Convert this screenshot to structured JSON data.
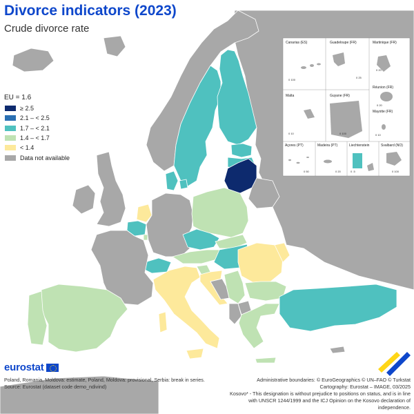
{
  "header": {
    "title": "Divorce indicators (2023)",
    "subtitle": "Crude divorce rate"
  },
  "legend": {
    "title": "EU = 1.6",
    "items": [
      {
        "label": "≥ 2.5",
        "color": "#0d2a6e"
      },
      {
        "label": "2.1 – < 2.5",
        "color": "#2a6fb2"
      },
      {
        "label": "1.7 – < 2.1",
        "color": "#4fc1bf"
      },
      {
        "label": "1.4 – < 1.7",
        "color": "#bfe2b3"
      },
      {
        "label": "< 1.4",
        "color": "#fde99b"
      },
      {
        "label": "Data not available",
        "color": "#a8a8a8"
      }
    ]
  },
  "colors": {
    "sea": "#ffffff",
    "non_eu_land": "#a8a8a8",
    "border": "#ffffff",
    "title": "#0e47cb"
  },
  "insets": [
    {
      "label": "Canarias (ES)",
      "scale": "0   100"
    },
    {
      "label": "Guadeloupe (FR)",
      "scale": "0   25"
    },
    {
      "label": "Martinique (FR)",
      "scale": "0   20"
    },
    {
      "label": "Réunion (FR)",
      "scale": "0   20"
    },
    {
      "label": "Malta",
      "scale": "0   10"
    },
    {
      "label": "Guyane (FR)",
      "scale": "0   100"
    },
    {
      "label": "Mayotte (FR)",
      "scale": "0   10"
    },
    {
      "label": "Açores (PT)",
      "scale": "0   50"
    },
    {
      "label": "Madeira (PT)",
      "scale": "0   20"
    },
    {
      "label": "Liechtenstein",
      "scale": "0   .5"
    },
    {
      "label": "Svalbard (NO)",
      "scale": "0 100"
    }
  ],
  "countries": [
    {
      "name": "Lithuania",
      "class": "≥ 2.5",
      "color": "#0d2a6e"
    },
    {
      "name": "Latvia",
      "class": "1.7 – < 2.1",
      "color": "#4fc1bf"
    },
    {
      "name": "Estonia",
      "class": "1.7 – < 2.1",
      "color": "#4fc1bf"
    },
    {
      "name": "Finland",
      "class": "1.7 – < 2.1",
      "color": "#4fc1bf"
    },
    {
      "name": "Sweden",
      "class": "1.7 – < 2.1",
      "color": "#4fc1bf"
    },
    {
      "name": "Denmark",
      "class": "1.7 – < 2.1",
      "color": "#4fc1bf"
    },
    {
      "name": "Belgium",
      "class": "1.7 – < 2.1",
      "color": "#4fc1bf"
    },
    {
      "name": "Czechia",
      "class": "1.7 – < 2.1",
      "color": "#4fc1bf"
    },
    {
      "name": "Hungary",
      "class": "1.7 – < 2.1",
      "color": "#4fc1bf"
    },
    {
      "name": "Switzerland",
      "class": "1.7 – < 2.1",
      "color": "#4fc1bf"
    },
    {
      "name": "Türkiye",
      "class": "1.7 – < 2.1",
      "color": "#4fc1bf"
    },
    {
      "name": "Poland",
      "class": "1.4 – < 1.7",
      "color": "#bfe2b3"
    },
    {
      "name": "Spain",
      "class": "1.4 – < 1.7",
      "color": "#bfe2b3"
    },
    {
      "name": "Portugal",
      "class": "1.4 – < 1.7",
      "color": "#bfe2b3"
    },
    {
      "name": "Slovakia",
      "class": "1.4 – < 1.7",
      "color": "#bfe2b3"
    },
    {
      "name": "Austria",
      "class": "1.4 – < 1.7",
      "color": "#bfe2b3"
    },
    {
      "name": "Slovenia",
      "class": "1.4 – < 1.7",
      "color": "#bfe2b3"
    },
    {
      "name": "Bulgaria",
      "class": "1.4 – < 1.7",
      "color": "#bfe2b3"
    },
    {
      "name": "Serbia",
      "class": "1.4 – < 1.7",
      "color": "#bfe2b3"
    },
    {
      "name": "Greece",
      "class": "1.4 – < 1.7",
      "color": "#bfe2b3"
    },
    {
      "name": "Luxembourg",
      "class": "1.4 – < 1.7",
      "color": "#bfe2b3"
    },
    {
      "name": "Netherlands",
      "class": "< 1.4",
      "color": "#fde99b"
    },
    {
      "name": "Italy",
      "class": "< 1.4",
      "color": "#fde99b"
    },
    {
      "name": "Romania",
      "class": "< 1.4",
      "color": "#fde99b"
    },
    {
      "name": "Croatia",
      "class": "< 1.4",
      "color": "#fde99b"
    },
    {
      "name": "Moldova",
      "class": "< 1.4",
      "color": "#fde99b"
    },
    {
      "name": "France",
      "class": "Data not available",
      "color": "#a8a8a8"
    },
    {
      "name": "Germany",
      "class": "Data not available",
      "color": "#a8a8a8"
    },
    {
      "name": "Ireland",
      "class": "Data not available",
      "color": "#a8a8a8"
    },
    {
      "name": "United Kingdom",
      "class": "Data not available",
      "color": "#a8a8a8"
    },
    {
      "name": "Norway",
      "class": "Data not available",
      "color": "#a8a8a8"
    },
    {
      "name": "Iceland",
      "class": "Data not available",
      "color": "#a8a8a8"
    }
  ],
  "footer": {
    "logo": "eurostat",
    "note_1": "Poland, Romania, Moldova: estimate, Poland, Moldova: provisional, Serbia: break in series.",
    "source": "Source: Eurostat (dataset code demo_ndivind)",
    "boundaries": "Administrative boundaries: © EuroGeographics © UN–FAO © Turkstat",
    "cartography": "Cartography: Eurostat – IMAGE, 03/2025",
    "kosovo": "Kosovo* - This designation is without prejudice to positions on status, and is in line with UNSCR 1244/1999 and the ICJ Opinion on the Kosovo declaration of independence."
  }
}
